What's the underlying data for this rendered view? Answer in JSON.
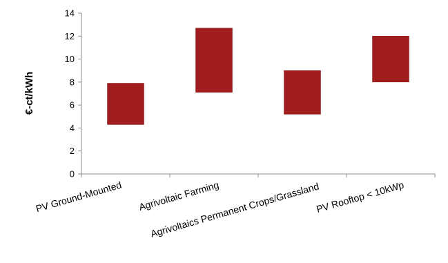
{
  "chart_data": {
    "type": "bar",
    "subtype": "floating-range",
    "title": "",
    "xlabel": "",
    "ylabel": "€-ct/kWh",
    "ylim": [
      0,
      14
    ],
    "yticks": [
      0,
      2,
      4,
      6,
      8,
      10,
      12,
      14
    ],
    "grid": false,
    "legend": "none",
    "categories": [
      "PV Ground-Mounted",
      "Agrivoltaic Farming",
      "Agrivoltaics Permanent Crops/Grassland",
      "PV Rooftop < 10kWp"
    ],
    "series": [
      {
        "low": [
          4.3,
          7.1,
          5.2,
          8.0
        ],
        "high": [
          7.9,
          12.7,
          9.0,
          12.0
        ],
        "color": "#a11d1d"
      }
    ],
    "colors": {
      "bar": "#a11d1d",
      "bar_edge": "#8a1717",
      "axis": "#8c8c8c"
    }
  }
}
